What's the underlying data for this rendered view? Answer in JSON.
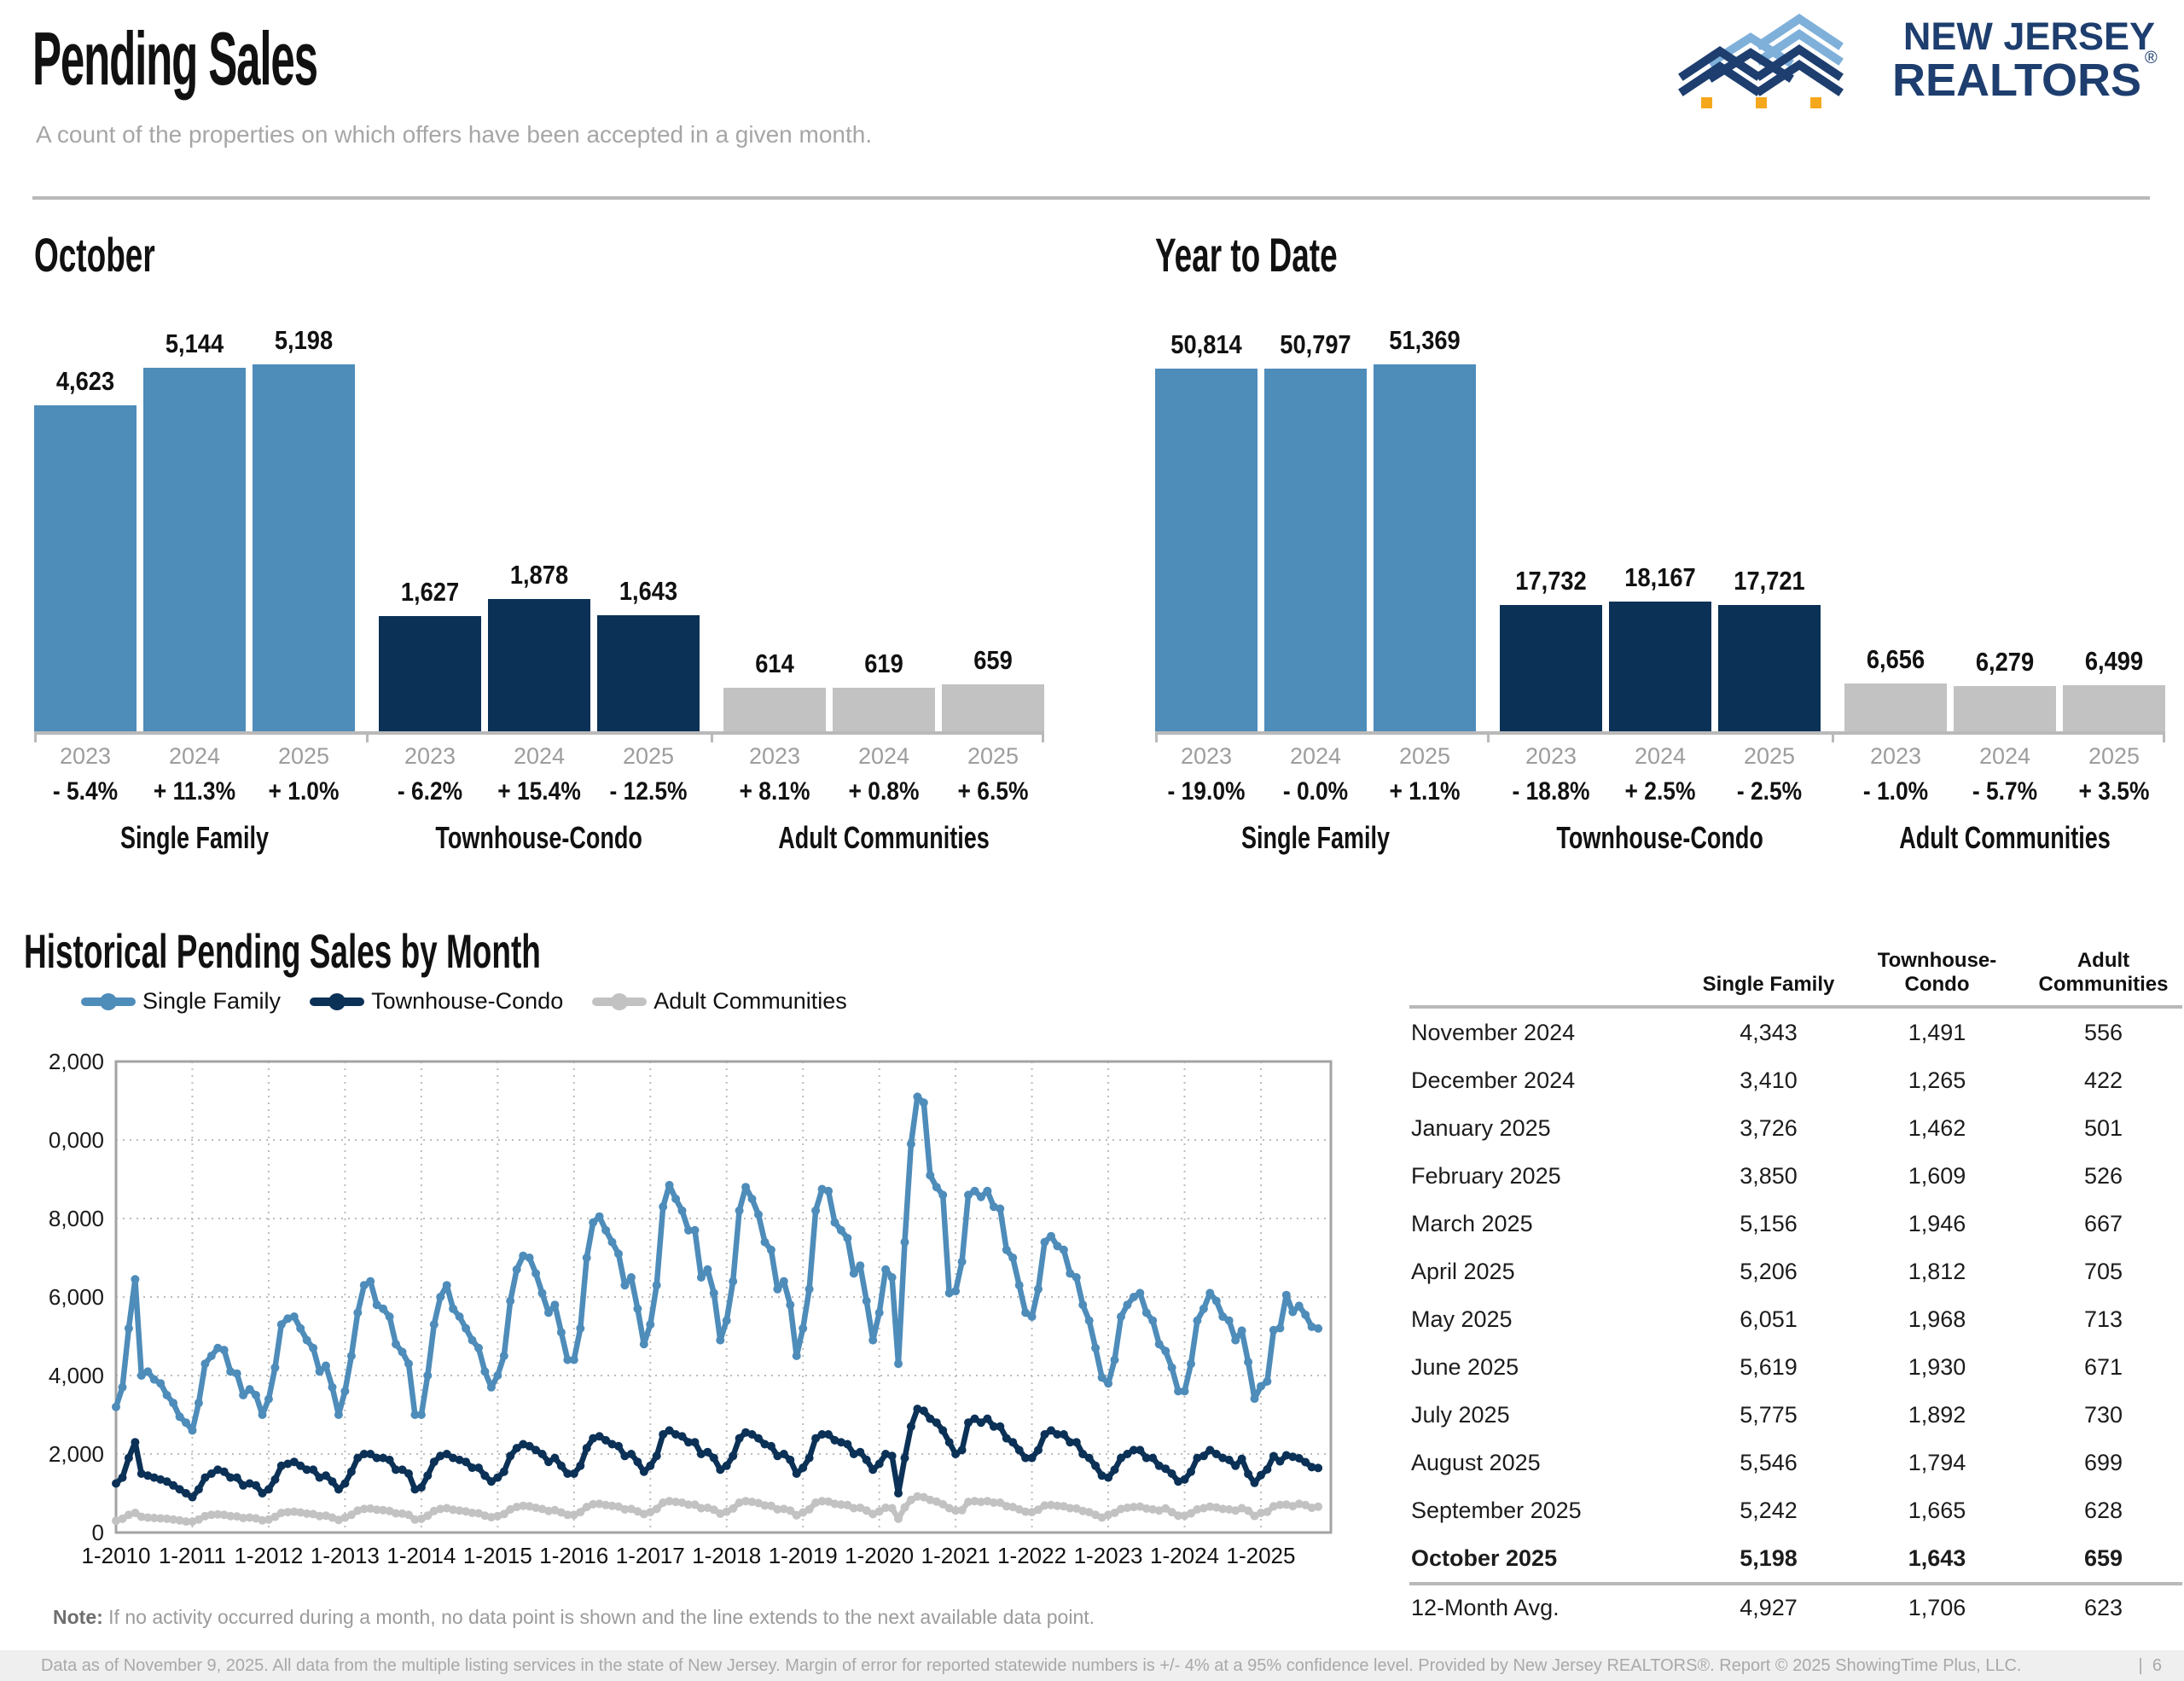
{
  "header": {
    "title": "Pending Sales",
    "subtitle": "A count of the properties on which offers have been accepted in a given month.",
    "logo_line1": "NEW JERSEY",
    "logo_line2": "REALTORS",
    "logo_reg": "®"
  },
  "colors": {
    "single_family": "#4e8cba",
    "townhouse_condo": "#0b3156",
    "adult_communities": "#c2c2c2",
    "axis": "#b9b9b9",
    "logo_navy": "#1d3e6e",
    "logo_light_blue": "#7fb0da",
    "logo_orange": "#f5a81c"
  },
  "chart_data": [
    {
      "type": "bar",
      "title": "October",
      "year_labels": [
        "2023",
        "2024",
        "2025"
      ],
      "groups": [
        {
          "label": "Single Family",
          "color_key": "single_family",
          "values": [
            4623,
            5144,
            5198
          ],
          "display": [
            "4,623",
            "5,144",
            "5,198"
          ],
          "pct": [
            "- 5.4%",
            "+ 11.3%",
            "+ 1.0%"
          ]
        },
        {
          "label": "Townhouse-Condo",
          "color_key": "townhouse_condo",
          "values": [
            1627,
            1878,
            1643
          ],
          "display": [
            "1,627",
            "1,878",
            "1,643"
          ],
          "pct": [
            "- 6.2%",
            "+ 15.4%",
            "- 12.5%"
          ]
        },
        {
          "label": "Adult Communities",
          "color_key": "adult_communities",
          "values": [
            614,
            619,
            659
          ],
          "display": [
            "614",
            "619",
            "659"
          ],
          "pct": [
            "+ 8.1%",
            "+ 0.8%",
            "+ 6.5%"
          ]
        }
      ]
    },
    {
      "type": "bar",
      "title": "Year to Date",
      "year_labels": [
        "2023",
        "2024",
        "2025"
      ],
      "groups": [
        {
          "label": "Single Family",
          "color_key": "single_family",
          "values": [
            50814,
            50797,
            51369
          ],
          "display": [
            "50,814",
            "50,797",
            "51,369"
          ],
          "pct": [
            "- 19.0%",
            "- 0.0%",
            "+ 1.1%"
          ]
        },
        {
          "label": "Townhouse-Condo",
          "color_key": "townhouse_condo",
          "values": [
            17732,
            18167,
            17721
          ],
          "display": [
            "17,732",
            "18,167",
            "17,721"
          ],
          "pct": [
            "- 18.8%",
            "+ 2.5%",
            "- 2.5%"
          ]
        },
        {
          "label": "Adult Communities",
          "color_key": "adult_communities",
          "values": [
            6656,
            6279,
            6499
          ],
          "display": [
            "6,656",
            "6,279",
            "6,499"
          ],
          "pct": [
            "- 1.0%",
            "- 5.7%",
            "+ 3.5%"
          ]
        }
      ]
    },
    {
      "type": "line",
      "title": "Historical Pending Sales by Month",
      "legend": [
        "Single Family",
        "Townhouse-Condo",
        "Adult Communities"
      ],
      "x_start": "1-2010",
      "x_end": "10-2025",
      "x_tick_labels": [
        "1-2010",
        "1-2011",
        "1-2012",
        "1-2013",
        "1-2014",
        "1-2015",
        "1-2016",
        "1-2017",
        "1-2018",
        "1-2019",
        "1-2020",
        "1-2021",
        "1-2022",
        "1-2023",
        "1-2024",
        "1-2025"
      ],
      "ylim": [
        0,
        12000
      ],
      "ytick_step": 2000,
      "grid": "dotted",
      "legend_position": "top-left",
      "note_label": "Note:",
      "note_text": " If no activity occurred during a month, no data point is shown and the line extends to the next available data point.",
      "series": [
        {
          "name": "Single Family",
          "color_key": "single_family",
          "values_by_year": [
            [
              3200,
              3700,
              5200,
              6450,
              4000,
              4100,
              3900,
              3800,
              3500,
              3300,
              2950,
              2800
            ],
            [
              2600,
              3300,
              4300,
              4500,
              4700,
              4650,
              4100,
              4050,
              3500,
              3650,
              3500,
              3000
            ],
            [
              3400,
              4200,
              5300,
              5450,
              5500,
              5200,
              4900,
              4700,
              4100,
              4250,
              3700,
              3000
            ],
            [
              3600,
              4500,
              5600,
              6300,
              6400,
              5800,
              5700,
              5500,
              4800,
              4600,
              4300,
              3000
            ],
            [
              3000,
              4000,
              5300,
              6000,
              6300,
              5700,
              5500,
              5200,
              4900,
              4700,
              4100,
              3700
            ],
            [
              4000,
              4500,
              5900,
              6700,
              7050,
              7000,
              6600,
              6100,
              5600,
              5800,
              5100,
              4400
            ],
            [
              4400,
              5200,
              7000,
              7900,
              8050,
              7700,
              7400,
              7100,
              6300,
              6500,
              5700,
              4800
            ],
            [
              5300,
              6300,
              8300,
              8850,
              8500,
              8200,
              7700,
              7700,
              6500,
              6700,
              6100,
              4900
            ],
            [
              5400,
              6400,
              8200,
              8800,
              8500,
              8100,
              7400,
              7200,
              6200,
              6400,
              5800,
              4500
            ],
            [
              5200,
              6200,
              8200,
              8750,
              8700,
              7900,
              7700,
              7500,
              6600,
              6800,
              5900,
              4900
            ],
            [
              5600,
              6700,
              6500,
              4300,
              7400,
              9900,
              11100,
              10950,
              9100,
              8800,
              8600,
              6100
            ],
            [
              6150,
              6900,
              8600,
              8700,
              8550,
              8700,
              8300,
              8250,
              7200,
              7000,
              6300,
              5600
            ],
            [
              5500,
              6200,
              7400,
              7550,
              7300,
              7200,
              6600,
              6500,
              5800,
              5400,
              4700,
              3950
            ],
            [
              3800,
              4400,
              5500,
              5800,
              6000,
              6100,
              5600,
              5400,
              4800,
              4623,
              4200,
              3600
            ],
            [
              3600,
              4300,
              5400,
              5700,
              6100,
              5900,
              5500,
              5400,
              4900,
              5144,
              4343,
              3410
            ],
            [
              3726,
              3850,
              5156,
              5206,
              6051,
              5619,
              5775,
              5546,
              5242,
              5198
            ]
          ]
        },
        {
          "name": "Townhouse-Condo",
          "color_key": "townhouse_condo",
          "values_by_year": [
            [
              1250,
              1400,
              1900,
              2300,
              1500,
              1450,
              1400,
              1350,
              1300,
              1200,
              1100,
              1000
            ],
            [
              900,
              1100,
              1400,
              1500,
              1600,
              1550,
              1400,
              1400,
              1200,
              1250,
              1200,
              1000
            ],
            [
              1100,
              1350,
              1700,
              1750,
              1800,
              1700,
              1600,
              1600,
              1400,
              1450,
              1300,
              1100
            ],
            [
              1250,
              1550,
              1900,
              2000,
              2000,
              1900,
              1900,
              1850,
              1600,
              1600,
              1500,
              1100
            ],
            [
              1150,
              1450,
              1800,
              1950,
              2000,
              1900,
              1850,
              1800,
              1650,
              1650,
              1450,
              1300
            ],
            [
              1400,
              1550,
              1950,
              2150,
              2250,
              2200,
              2100,
              2000,
              1800,
              1900,
              1700,
              1500
            ],
            [
              1500,
              1700,
              2150,
              2400,
              2450,
              2350,
              2250,
              2200,
              1950,
              2000,
              1800,
              1550
            ],
            [
              1700,
              1950,
              2500,
              2600,
              2500,
              2450,
              2300,
              2300,
              2000,
              2050,
              1900,
              1600
            ],
            [
              1700,
              1950,
              2400,
              2550,
              2500,
              2400,
              2250,
              2200,
              1950,
              2000,
              1850,
              1500
            ],
            [
              1650,
              1900,
              2400,
              2500,
              2500,
              2350,
              2300,
              2250,
              2000,
              2050,
              1850,
              1600
            ],
            [
              1750,
              2000,
              1950,
              1000,
              1900,
              2700,
              3150,
              3100,
              2900,
              2800,
              2600,
              2300
            ],
            [
              2000,
              2100,
              2800,
              2900,
              2800,
              2900,
              2700,
              2700,
              2400,
              2300,
              2100,
              1900
            ],
            [
              1900,
              2100,
              2500,
              2600,
              2500,
              2500,
              2300,
              2300,
              2000,
              1900,
              1700,
              1450
            ],
            [
              1400,
              1600,
              1900,
              2000,
              2100,
              2100,
              1900,
              1900,
              1700,
              1627,
              1500,
              1300
            ],
            [
              1350,
              1550,
              1900,
              1950,
              2100,
              2000,
              1900,
              1850,
              1700,
              1878,
              1491,
              1265
            ],
            [
              1462,
              1609,
              1946,
              1812,
              1968,
              1930,
              1892,
              1794,
              1665,
              1643
            ]
          ]
        },
        {
          "name": "Adult Communities",
          "color_key": "adult_communities",
          "values_by_year": [
            [
              300,
              350,
              450,
              500,
              400,
              380,
              370,
              360,
              350,
              330,
              310,
              280
            ],
            [
              280,
              330,
              420,
              450,
              460,
              450,
              420,
              410,
              370,
              380,
              360,
              310
            ],
            [
              330,
              400,
              500,
              520,
              530,
              510,
              480,
              470,
              420,
              430,
              380,
              320
            ],
            [
              380,
              450,
              560,
              600,
              610,
              580,
              570,
              550,
              490,
              480,
              450,
              330
            ],
            [
              350,
              430,
              550,
              600,
              620,
              580,
              560,
              540,
              500,
              490,
              430,
              390
            ],
            [
              420,
              470,
              590,
              650,
              680,
              670,
              630,
              600,
              550,
              570,
              510,
              450
            ],
            [
              450,
              520,
              650,
              720,
              730,
              700,
              680,
              660,
              590,
              600,
              540,
              470
            ],
            [
              520,
              600,
              760,
              800,
              780,
              760,
              710,
              710,
              620,
              630,
              580,
              480
            ],
            [
              530,
              610,
              760,
              800,
              780,
              750,
              690,
              680,
              590,
              600,
              560,
              440
            ],
            [
              510,
              590,
              760,
              800,
              790,
              730,
              710,
              700,
              620,
              630,
              560,
              470
            ],
            [
              540,
              630,
              620,
              350,
              640,
              830,
              920,
              900,
              830,
              790,
              720,
              620
            ],
            [
              560,
              570,
              780,
              800,
              780,
              800,
              760,
              760,
              670,
              650,
              590,
              530
            ],
            [
              520,
              580,
              690,
              700,
              680,
              670,
              620,
              610,
              550,
              520,
              450,
              380
            ],
            [
              450,
              500,
              600,
              630,
              650,
              660,
              610,
              590,
              560,
              614,
              520,
              430
            ],
            [
              430,
              490,
              590,
              620,
              660,
              640,
              600,
              590,
              560,
              619,
              556,
              422
            ],
            [
              501,
              526,
              667,
              705,
              713,
              671,
              730,
              699,
              628,
              659
            ]
          ]
        }
      ]
    }
  ],
  "table": {
    "headers": [
      "Single Family",
      "Townhouse-Condo",
      "Adult Communities"
    ],
    "rows": [
      {
        "label": "November 2024",
        "values": [
          "4,343",
          "1,491",
          "556"
        ]
      },
      {
        "label": "December 2024",
        "values": [
          "3,410",
          "1,265",
          "422"
        ]
      },
      {
        "label": "January 2025",
        "values": [
          "3,726",
          "1,462",
          "501"
        ]
      },
      {
        "label": "February 2025",
        "values": [
          "3,850",
          "1,609",
          "526"
        ]
      },
      {
        "label": "March 2025",
        "values": [
          "5,156",
          "1,946",
          "667"
        ]
      },
      {
        "label": "April 2025",
        "values": [
          "5,206",
          "1,812",
          "705"
        ]
      },
      {
        "label": "May 2025",
        "values": [
          "6,051",
          "1,968",
          "713"
        ]
      },
      {
        "label": "June 2025",
        "values": [
          "5,619",
          "1,930",
          "671"
        ]
      },
      {
        "label": "July 2025",
        "values": [
          "5,775",
          "1,892",
          "730"
        ]
      },
      {
        "label": "August 2025",
        "values": [
          "5,546",
          "1,794",
          "699"
        ]
      },
      {
        "label": "September 2025",
        "values": [
          "5,242",
          "1,665",
          "628"
        ]
      },
      {
        "label": "October 2025",
        "values": [
          "5,198",
          "1,643",
          "659"
        ],
        "bold": true
      }
    ],
    "avg_row": {
      "label": "12-Month Avg.",
      "values": [
        "4,927",
        "1,706",
        "623"
      ]
    }
  },
  "footer": {
    "text": "Data as of November 9, 2025. All data from the multiple listing services in the state of New Jersey. Margin of error for reported statewide numbers is +/- 4% at a 95% confidence level. Provided by New Jersey REALTORS®. Report © 2025 ShowingTime Plus, LLC.",
    "divider": "|",
    "page": "6"
  }
}
